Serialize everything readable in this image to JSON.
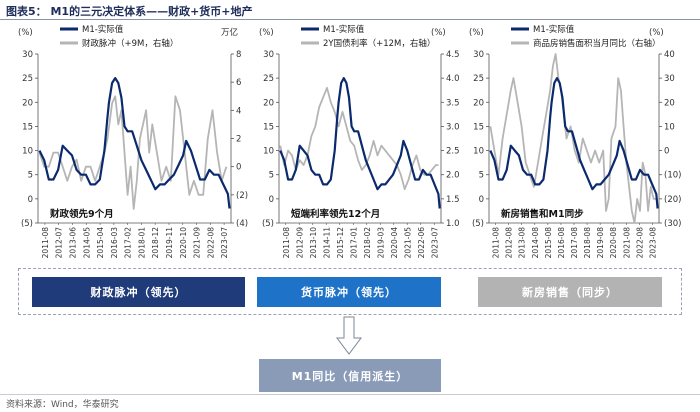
{
  "figure": {
    "title": "图表5： M1的三元决定体系——财政+货币+地产",
    "source": "资料来源：Wind，华泰研究"
  },
  "colors": {
    "navy": "#0b2a6e",
    "gray": "#b5b5b5",
    "blue": "#1e73c8",
    "flow_gray": "#b3b3b3",
    "m1_box": "#8a9bb8"
  },
  "flow": {
    "box1": "财政脉冲（领先）",
    "box2": "货币脉冲（领先）",
    "box3": "新房销售（同步）",
    "result": "M1同比（信用派生）"
  },
  "chart_data": [
    {
      "type": "line",
      "left_unit": "(%)",
      "right_unit": "万亿",
      "ylim": [
        -5,
        30
      ],
      "y2lim": [
        -4,
        8
      ],
      "yticks": [
        "(5)",
        "0",
        "5",
        "10",
        "15",
        "20",
        "25",
        "30"
      ],
      "y2ticks": [
        "(4)",
        "(2)",
        "0",
        "2",
        "4",
        "6",
        "8"
      ],
      "x_categories": [
        "2011-08",
        "2012-07",
        "2013-06",
        "2014-05",
        "2015-04",
        "2016-03",
        "2017-02",
        "2018-01",
        "2018-12",
        "2019-11",
        "2020-10",
        "2021-09",
        "2022-08",
        "2023-07"
      ],
      "annotation": "财政领先9个月",
      "series": [
        {
          "name": "M1-实际值",
          "axis": "left",
          "color": "#0b2a6e",
          "x": [
            2011.6,
            2011.9,
            2012.2,
            2012.5,
            2012.8,
            2013.1,
            2013.4,
            2013.7,
            2014.0,
            2014.3,
            2014.6,
            2014.9,
            2015.2,
            2015.5,
            2015.8,
            2016.0,
            2016.1,
            2016.3,
            2016.5,
            2016.7,
            2016.9,
            2017.1,
            2017.3,
            2017.6,
            2017.9,
            2018.2,
            2018.5,
            2018.8,
            2019.1,
            2019.4,
            2019.7,
            2020.0,
            2020.3,
            2020.6,
            2020.9,
            2021.1,
            2021.4,
            2021.7,
            2022.0,
            2022.3,
            2022.6,
            2022.9,
            2023.2,
            2023.5,
            2023.8,
            2023.9
          ],
          "y": [
            10,
            8,
            4,
            4,
            6,
            11,
            10,
            9,
            6,
            5,
            5,
            3,
            3,
            4,
            10,
            17,
            20,
            24,
            25,
            24,
            21,
            15,
            14,
            14,
            11,
            8,
            6,
            4,
            2,
            3,
            3,
            4,
            5,
            7,
            9,
            12,
            10,
            7,
            4,
            4,
            6,
            5,
            5,
            3,
            1,
            -2
          ]
        },
        {
          "name": "财政脉冲（+9M，右轴）",
          "axis": "right",
          "color": "#b5b5b5",
          "x": [
            2011.6,
            2011.9,
            2012.2,
            2012.5,
            2012.8,
            2013.1,
            2013.4,
            2013.7,
            2014.0,
            2014.3,
            2014.6,
            2014.9,
            2015.2,
            2015.5,
            2015.8,
            2016.0,
            2016.3,
            2016.5,
            2016.7,
            2016.9,
            2017.1,
            2017.3,
            2017.5,
            2017.7,
            2017.9,
            2018.1,
            2018.3,
            2018.5,
            2018.7,
            2018.9,
            2019.2,
            2019.5,
            2019.8,
            2020.1,
            2020.4,
            2020.7,
            2021.0,
            2021.3,
            2021.6,
            2021.9,
            2022.2,
            2022.5,
            2022.8,
            2023.1,
            2023.4,
            2023.7
          ],
          "y": [
            1,
            0,
            0,
            1,
            1,
            0,
            -1,
            0,
            0.5,
            -1,
            0,
            0,
            -1,
            0,
            1,
            2,
            4.5,
            5,
            3,
            4,
            1,
            -2,
            0,
            -3,
            -1,
            2,
            3,
            4,
            1,
            3,
            1,
            -1,
            0,
            -1,
            5,
            4,
            1,
            -2,
            -1,
            -2,
            -2,
            2,
            4,
            1,
            -1,
            0
          ]
        }
      ]
    },
    {
      "type": "line",
      "left_unit": "(%)",
      "right_unit": "(%)",
      "ylim": [
        -5,
        30
      ],
      "y2lim": [
        1.0,
        4.5
      ],
      "yticks": [
        "(5)",
        "0",
        "5",
        "10",
        "15",
        "20",
        "25",
        "30"
      ],
      "y2ticks": [
        "1.0",
        "1.5",
        "2.0",
        "2.5",
        "3.0",
        "3.5",
        "4.0",
        "4.5"
      ],
      "x_categories": [
        "2011-08",
        "2012-09",
        "2013-10",
        "2014-11",
        "2015-12",
        "2017-01",
        "2018-02",
        "2019-03",
        "2020-04",
        "2021-05",
        "2022-06",
        "2023-07"
      ],
      "annotation": "短端利率领先12个月",
      "series": [
        {
          "name": "M1-实际值",
          "axis": "left",
          "color": "#0b2a6e",
          "x": [
            2011.6,
            2011.9,
            2012.2,
            2012.5,
            2012.8,
            2013.1,
            2013.4,
            2013.7,
            2014.0,
            2014.3,
            2014.6,
            2014.9,
            2015.2,
            2015.5,
            2015.8,
            2016.0,
            2016.1,
            2016.3,
            2016.5,
            2016.7,
            2016.9,
            2017.1,
            2017.3,
            2017.6,
            2017.9,
            2018.2,
            2018.5,
            2018.8,
            2019.1,
            2019.4,
            2019.7,
            2020.0,
            2020.3,
            2020.6,
            2020.9,
            2021.1,
            2021.4,
            2021.7,
            2022.0,
            2022.3,
            2022.6,
            2022.9,
            2023.2,
            2023.5,
            2023.8,
            2023.9
          ],
          "y": [
            10,
            8,
            4,
            4,
            6,
            11,
            10,
            9,
            6,
            5,
            5,
            3,
            3,
            4,
            10,
            17,
            20,
            24,
            25,
            24,
            21,
            15,
            14,
            14,
            11,
            8,
            6,
            4,
            2,
            3,
            3,
            4,
            5,
            7,
            9,
            12,
            10,
            7,
            4,
            4,
            6,
            5,
            5,
            3,
            1,
            -2
          ]
        },
        {
          "name": "2Y国债利率（+12M，右轴）",
          "axis": "right",
          "color": "#b5b5b5",
          "x": [
            2011.6,
            2011.9,
            2012.2,
            2012.5,
            2012.8,
            2013.1,
            2013.4,
            2013.7,
            2014.0,
            2014.3,
            2014.6,
            2014.9,
            2015.2,
            2015.5,
            2015.8,
            2016.1,
            2016.4,
            2016.7,
            2017.0,
            2017.3,
            2017.6,
            2017.9,
            2018.2,
            2018.5,
            2018.8,
            2019.1,
            2019.4,
            2019.7,
            2020.0,
            2020.3,
            2020.6,
            2020.9,
            2021.2,
            2021.5,
            2021.8,
            2022.1,
            2022.4,
            2022.7,
            2023.0,
            2023.3,
            2023.6,
            2023.8
          ],
          "y": [
            2.6,
            2.2,
            2.5,
            2.4,
            2.1,
            2.3,
            2.2,
            2.4,
            2.8,
            3.0,
            3.4,
            3.6,
            3.8,
            3.5,
            3.3,
            3.0,
            3.3,
            3.0,
            2.7,
            2.6,
            2.3,
            2.1,
            2.2,
            2.4,
            2.7,
            2.4,
            2.6,
            2.5,
            2.4,
            2.3,
            2.2,
            2.0,
            1.7,
            1.9,
            2.2,
            2.4,
            2.1,
            2.0,
            2.0,
            2.1,
            2.2,
            2.2
          ]
        }
      ]
    },
    {
      "type": "line",
      "left_unit": "(%)",
      "right_unit": "(%)",
      "ylim": [
        -5,
        30
      ],
      "y2lim": [
        -30,
        40
      ],
      "yticks": [
        "(5)",
        "0",
        "5",
        "10",
        "15",
        "20",
        "25",
        "30"
      ],
      "y2ticks": [
        "(30)",
        "(20)",
        "(10)",
        "0",
        "10",
        "20",
        "30",
        "40"
      ],
      "x_categories": [
        "2011-08",
        "2012-08",
        "2013-08",
        "2014-08",
        "2015-08",
        "2016-08",
        "2017-08",
        "2018-08",
        "2019-08",
        "2020-08",
        "2021-08",
        "2022-08",
        "2023-08"
      ],
      "annotation": "新房销售和M1同步",
      "series": [
        {
          "name": "M1-实际值",
          "axis": "left",
          "color": "#0b2a6e",
          "x": [
            2011.6,
            2011.9,
            2012.2,
            2012.5,
            2012.8,
            2013.1,
            2013.4,
            2013.7,
            2014.0,
            2014.3,
            2014.6,
            2014.9,
            2015.2,
            2015.5,
            2015.8,
            2016.0,
            2016.1,
            2016.3,
            2016.5,
            2016.7,
            2016.9,
            2017.1,
            2017.3,
            2017.6,
            2017.9,
            2018.2,
            2018.5,
            2018.8,
            2019.1,
            2019.4,
            2019.7,
            2020.0,
            2020.3,
            2020.6,
            2020.9,
            2021.1,
            2021.4,
            2021.7,
            2022.0,
            2022.3,
            2022.6,
            2022.9,
            2023.2,
            2023.5,
            2023.8,
            2023.9
          ],
          "y": [
            10,
            8,
            4,
            4,
            6,
            11,
            10,
            9,
            6,
            5,
            5,
            3,
            3,
            4,
            10,
            17,
            20,
            24,
            25,
            24,
            21,
            15,
            14,
            14,
            11,
            8,
            6,
            4,
            2,
            3,
            3,
            4,
            5,
            7,
            9,
            12,
            10,
            7,
            4,
            4,
            6,
            5,
            5,
            3,
            1,
            -2
          ]
        },
        {
          "name": "商品房销售面积当月同比（右轴）",
          "axis": "right",
          "color": "#b5b5b5",
          "x": [
            2011.6,
            2011.9,
            2012.2,
            2012.5,
            2012.8,
            2013.1,
            2013.3,
            2013.6,
            2013.9,
            2014.2,
            2014.5,
            2014.8,
            2015.1,
            2015.4,
            2015.7,
            2016.0,
            2016.2,
            2016.4,
            2016.6,
            2016.8,
            2017.0,
            2017.2,
            2017.5,
            2017.8,
            2018.1,
            2018.4,
            2018.7,
            2019.0,
            2019.3,
            2019.6,
            2019.9,
            2020.1,
            2020.3,
            2020.5,
            2020.8,
            2021.0,
            2021.2,
            2021.4,
            2021.6,
            2021.8,
            2022.0,
            2022.2,
            2022.4,
            2022.6,
            2022.8,
            2023.0,
            2023.2,
            2023.4,
            2023.6,
            2023.8
          ],
          "y": [
            10,
            0,
            -10,
            5,
            15,
            25,
            30,
            20,
            10,
            -5,
            -10,
            -15,
            -5,
            5,
            15,
            25,
            35,
            40,
            30,
            25,
            15,
            5,
            10,
            0,
            -5,
            5,
            0,
            -5,
            0,
            -5,
            0,
            -25,
            -20,
            5,
            10,
            30,
            25,
            10,
            -5,
            -15,
            -25,
            -30,
            -20,
            -25,
            -5,
            -10,
            -25,
            -15,
            -20,
            -20
          ]
        }
      ]
    }
  ]
}
